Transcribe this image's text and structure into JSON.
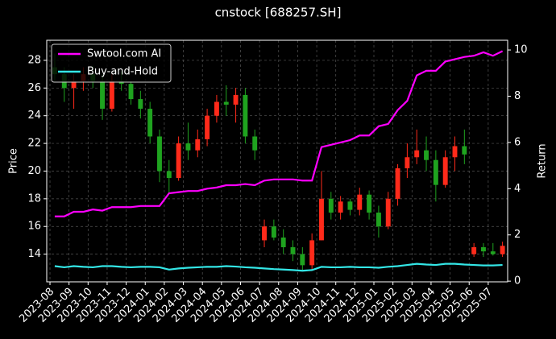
{
  "chart_data": {
    "type": "candlestick",
    "title": "cnstock [688257.SH]",
    "ylabel": "Price",
    "y2label": "Return",
    "up_color": "#ff2a1a",
    "down_color": "#1fa31f",
    "grid": true,
    "legend": "upper left",
    "xlim": [
      -0.17,
      24.02
    ],
    "ylim": [
      12.0,
      29.45
    ],
    "y2lim": [
      -0.03,
      10.42
    ],
    "xticks": [
      {
        "value": 0,
        "label": "2023-08"
      },
      {
        "value": 1,
        "label": "2023-09"
      },
      {
        "value": 2,
        "label": "2023-10"
      },
      {
        "value": 3,
        "label": "2023-11"
      },
      {
        "value": 4,
        "label": "2023-12"
      },
      {
        "value": 5,
        "label": "2024-01"
      },
      {
        "value": 6,
        "label": "2024-02"
      },
      {
        "value": 7,
        "label": "2024-03"
      },
      {
        "value": 8,
        "label": "2024-04"
      },
      {
        "value": 9,
        "label": "2024-05"
      },
      {
        "value": 10,
        "label": "2024-06"
      },
      {
        "value": 11,
        "label": "2024-07"
      },
      {
        "value": 12,
        "label": "2024-08"
      },
      {
        "value": 13,
        "label": "2024-09"
      },
      {
        "value": 14,
        "label": "2024-10"
      },
      {
        "value": 15,
        "label": "2024-11"
      },
      {
        "value": 16,
        "label": "2024-12"
      },
      {
        "value": 17,
        "label": "2025-01"
      },
      {
        "value": 18,
        "label": "2025-02"
      },
      {
        "value": 19,
        "label": "2025-03"
      },
      {
        "value": 20,
        "label": "2025-04"
      },
      {
        "value": 21,
        "label": "2025-05"
      },
      {
        "value": 22,
        "label": "2025-06"
      },
      {
        "value": 23,
        "label": "2025-07"
      }
    ],
    "yticks": [
      14,
      16,
      18,
      20,
      22,
      24,
      26,
      28
    ],
    "y2ticks": [
      0,
      2,
      4,
      6,
      8,
      10
    ],
    "x": [
      0.25,
      0.75,
      1.25,
      1.75,
      2.25,
      2.75,
      3.25,
      3.75,
      4.25,
      4.75,
      5.25,
      5.75,
      6.25,
      6.75,
      7.25,
      7.75,
      8.25,
      8.75,
      9.25,
      9.75,
      10.25,
      10.75,
      11.25,
      11.75,
      12.25,
      12.75,
      13.25,
      13.75,
      14.25,
      14.75,
      15.25,
      15.75,
      16.25,
      16.75,
      17.25,
      17.75,
      18.25,
      18.75,
      19.25,
      19.75,
      20.25,
      20.75,
      21.25,
      21.75,
      22.25,
      22.75,
      23.25,
      23.75
    ],
    "open": [
      27.5,
      27.0,
      26.0,
      26.5,
      27.0,
      26.5,
      24.5,
      26.5,
      26.3,
      25.2,
      24.5,
      22.5,
      20.0,
      19.5,
      22.0,
      21.5,
      22.3,
      24.0,
      25.0,
      24.8,
      25.5,
      22.5,
      15.0,
      16.0,
      15.2,
      14.5,
      14.0,
      13.2,
      15.0,
      18.0,
      17.0,
      17.8,
      17.2,
      18.3,
      17.0,
      16.0,
      18.0,
      20.2,
      21.0,
      21.5,
      20.8,
      19.0,
      21.0,
      21.8,
      14.0,
      14.5,
      14.2,
      14.0
    ],
    "high": [
      28.5,
      27.5,
      27.0,
      27.5,
      27.6,
      27.0,
      27.0,
      27.2,
      26.5,
      25.8,
      25.0,
      23.0,
      20.8,
      22.5,
      23.5,
      23.0,
      24.5,
      25.5,
      26.2,
      26.0,
      26.0,
      23.0,
      16.5,
      16.5,
      15.8,
      15.0,
      14.5,
      15.5,
      20.0,
      18.5,
      18.2,
      18.0,
      18.8,
      18.6,
      17.5,
      18.5,
      20.5,
      22.0,
      23.0,
      22.5,
      21.5,
      21.5,
      22.5,
      23.0,
      14.8,
      14.8,
      14.8,
      14.9
    ],
    "low": [
      26.5,
      25.0,
      24.5,
      25.8,
      26.0,
      23.7,
      24.3,
      25.8,
      24.8,
      23.8,
      22.0,
      19.2,
      18.4,
      19.3,
      20.8,
      21.0,
      21.8,
      23.5,
      24.0,
      23.5,
      22.0,
      20.8,
      14.5,
      15.0,
      14.0,
      13.5,
      12.8,
      12.9,
      15.0,
      16.5,
      16.5,
      16.8,
      16.8,
      16.5,
      15.2,
      15.8,
      17.5,
      19.5,
      20.5,
      20.0,
      17.8,
      18.8,
      20.0,
      20.5,
      13.8,
      13.8,
      13.9,
      13.8
    ],
    "close": [
      27.0,
      26.0,
      26.5,
      27.0,
      26.5,
      24.5,
      26.5,
      26.3,
      25.2,
      24.5,
      22.5,
      20.0,
      19.5,
      22.0,
      21.5,
      22.3,
      24.0,
      25.0,
      24.8,
      25.5,
      22.5,
      21.5,
      16.0,
      15.2,
      14.5,
      14.0,
      13.2,
      15.0,
      18.0,
      17.0,
      17.8,
      17.2,
      18.3,
      17.0,
      16.0,
      18.0,
      20.2,
      21.0,
      21.5,
      20.8,
      19.0,
      21.0,
      21.8,
      21.2,
      14.5,
      14.2,
      14.0,
      14.6
    ],
    "series": [
      {
        "name": "Swtool.com AI",
        "color": "#ff00ff",
        "axis": "y2",
        "values": [
          2.8,
          2.8,
          3.0,
          3.0,
          3.1,
          3.05,
          3.2,
          3.2,
          3.2,
          3.25,
          3.25,
          3.25,
          3.8,
          3.85,
          3.9,
          3.9,
          4.0,
          4.05,
          4.15,
          4.15,
          4.2,
          4.15,
          4.35,
          4.4,
          4.4,
          4.4,
          4.35,
          4.35,
          5.8,
          5.9,
          6.0,
          6.1,
          6.3,
          6.3,
          6.7,
          6.8,
          7.4,
          7.8,
          8.9,
          9.1,
          9.1,
          9.5,
          9.6,
          9.7,
          9.75,
          9.9,
          9.75,
          9.95
        ]
      },
      {
        "name": "Buy-and-Hold",
        "color": "#33e6e6",
        "axis": "y2",
        "values": [
          0.65,
          0.6,
          0.65,
          0.62,
          0.6,
          0.65,
          0.65,
          0.62,
          0.6,
          0.62,
          0.62,
          0.6,
          0.5,
          0.55,
          0.58,
          0.6,
          0.62,
          0.62,
          0.65,
          0.63,
          0.6,
          0.58,
          0.55,
          0.52,
          0.5,
          0.48,
          0.45,
          0.48,
          0.62,
          0.6,
          0.6,
          0.62,
          0.6,
          0.6,
          0.58,
          0.62,
          0.65,
          0.7,
          0.75,
          0.72,
          0.7,
          0.75,
          0.75,
          0.72,
          0.7,
          0.68,
          0.68,
          0.7
        ]
      }
    ]
  }
}
